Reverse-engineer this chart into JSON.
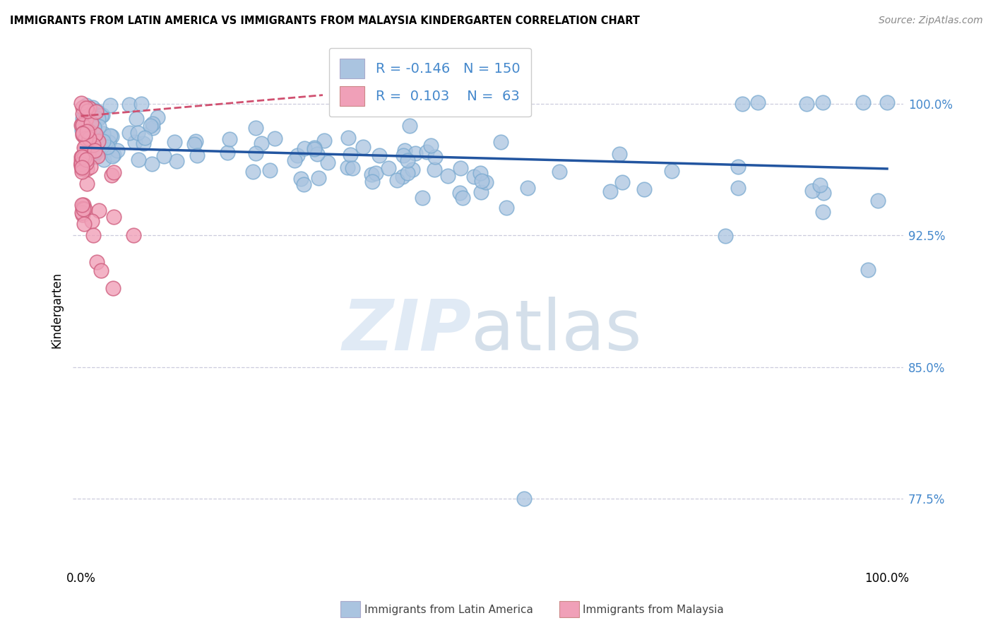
{
  "title": "IMMIGRANTS FROM LATIN AMERICA VS IMMIGRANTS FROM MALAYSIA KINDERGARTEN CORRELATION CHART",
  "source": "Source: ZipAtlas.com",
  "legend_blue_label": "Immigrants from Latin America",
  "legend_pink_label": "Immigrants from Malaysia",
  "ylabel": "Kindergarten",
  "R_blue": -0.146,
  "N_blue": 150,
  "R_pink": 0.103,
  "N_pink": 63,
  "blue_color": "#aac4e0",
  "blue_edge_color": "#7aaad0",
  "blue_line_color": "#2255a0",
  "pink_color": "#f0a0b8",
  "pink_edge_color": "#d06080",
  "pink_line_color": "#d05070",
  "tick_color": "#4488cc",
  "grid_color": "#ccccdd",
  "ytick_values": [
    0.775,
    0.85,
    0.925,
    1.0
  ],
  "ytick_labels": [
    "77.5%",
    "85.0%",
    "92.5%",
    "100.0%"
  ],
  "ymin": 0.735,
  "ymax": 1.03,
  "xmin": -0.01,
  "xmax": 1.02
}
